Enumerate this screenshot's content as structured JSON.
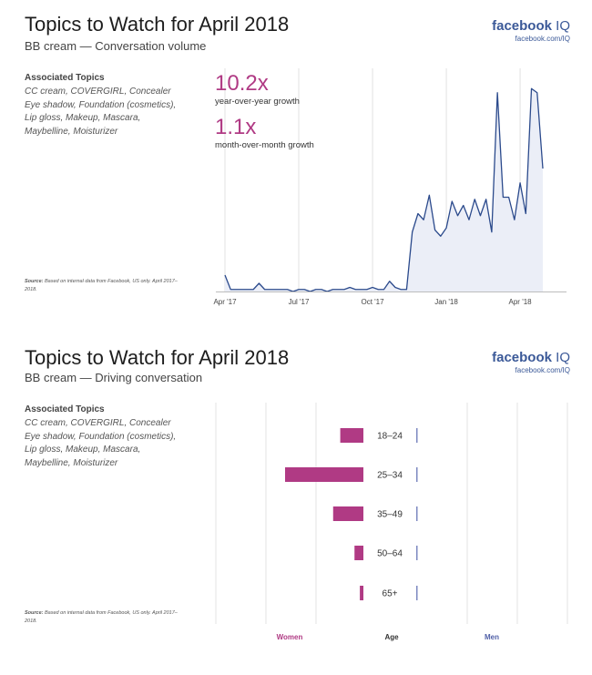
{
  "brand": {
    "name": "facebook",
    "suffix": "IQ",
    "url": "facebook.com/IQ"
  },
  "panel1": {
    "title": "Topics to Watch for April 2018",
    "subtitle": "BB cream — Conversation volume",
    "assoc_heading": "Associated Topics",
    "assoc_topics": "CC cream, COVERGIRL, Concealer Eye shadow, Foundation (cosmetics), Lip gloss, Makeup, Mascara, Maybelline, Moisturizer",
    "source_label": "Source:",
    "source_text": " Based on internal data from Facebook, US only. April 2017–2018.",
    "stats": [
      {
        "value": "10.2x",
        "label": "year-over-year growth"
      },
      {
        "value": "1.1x",
        "label": "month-over-month growth"
      }
    ]
  },
  "panel2": {
    "title": "Topics to Watch for April 2018",
    "subtitle": "BB cream — Driving conversation",
    "assoc_heading": "Associated Topics",
    "assoc_topics": "CC cream, COVERGIRL, Concealer Eye shadow, Foundation (cosmetics), Lip gloss, Makeup, Mascara, Maybelline, Moisturizer",
    "source_label": "Source:",
    "source_text": " Based on internal data from Facebook, US only. April 2017–2018."
  },
  "chart_data": [
    {
      "type": "area",
      "title": "BB cream — Conversation volume",
      "xlabel": "",
      "ylabel": "",
      "tick_labels": [
        "Apr '17",
        "Jul '17",
        "Oct '17",
        "Jan '18",
        "Apr '18"
      ],
      "tick_index": [
        0,
        13,
        26,
        39,
        52
      ],
      "ylim": [
        0,
        100
      ],
      "grid": true,
      "color": "#2b4a8c",
      "fill": "#ebeef7",
      "values": [
        8,
        1,
        1,
        1,
        1,
        1,
        4,
        1,
        1,
        1,
        1,
        1,
        0,
        1,
        1,
        0,
        1,
        1,
        0,
        1,
        1,
        1,
        2,
        1,
        1,
        1,
        2,
        1,
        1,
        5,
        2,
        1,
        1,
        29,
        38,
        35,
        47,
        30,
        27,
        31,
        44,
        37,
        42,
        35,
        45,
        37,
        45,
        29,
        97,
        46,
        46,
        35,
        53,
        38,
        99,
        97,
        60
      ]
    },
    {
      "type": "bar",
      "title": "BB cream — Driving conversation",
      "categories": [
        "18–24",
        "25–34",
        "35–49",
        "50–64",
        "65+"
      ],
      "series": [
        {
          "name": "Women",
          "values": [
            13,
            44,
            17,
            5,
            2
          ],
          "color": "#b03a84"
        },
        {
          "name": "Men",
          "values": [
            0.5,
            0.5,
            0.5,
            0.5,
            0.5
          ],
          "color": "#7c88c0"
        }
      ],
      "xlim": [
        0,
        60
      ],
      "xlabel": "Age",
      "legend": [
        "Women",
        "Age",
        "Men"
      ]
    }
  ]
}
